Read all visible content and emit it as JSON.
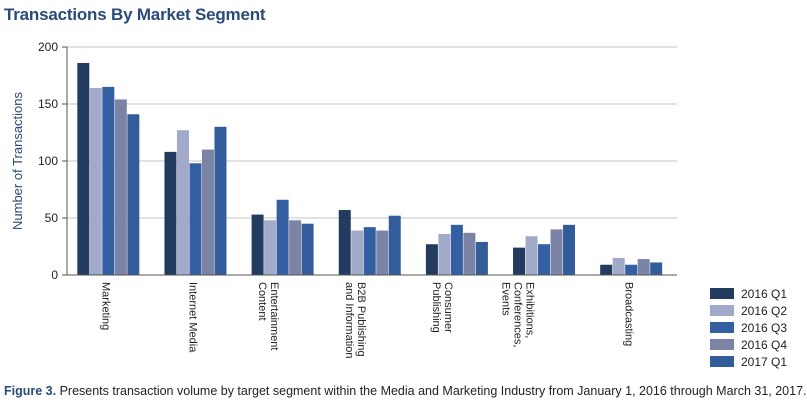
{
  "chart_data": {
    "type": "bar",
    "title": "Transactions By Market Segment",
    "xlabel": "",
    "ylabel": "Number of Transactions",
    "ylim": [
      0,
      200
    ],
    "yticks": [
      "0",
      "50",
      "100",
      "150",
      "200"
    ],
    "categories": [
      [
        "Marketing"
      ],
      [
        "Internet Media"
      ],
      [
        "Entertainment",
        "Content"
      ],
      [
        "B2B Publishing",
        "and Information"
      ],
      [
        "Consumer",
        "Publishing"
      ],
      [
        "Exhibitions,",
        "Conferences,",
        "Events"
      ],
      [
        "Broadcasting"
      ]
    ],
    "series": [
      {
        "name": "2016 Q1",
        "color": "#233b5e",
        "values": [
          186,
          108,
          53,
          57,
          27,
          24,
          9
        ]
      },
      {
        "name": "2016 Q2",
        "color": "#a1aac9",
        "values": [
          164,
          127,
          48,
          39,
          36,
          34,
          15
        ]
      },
      {
        "name": "2016 Q3",
        "color": "#355fa3",
        "values": [
          165,
          98,
          66,
          42,
          44,
          27,
          9
        ]
      },
      {
        "name": "2016 Q4",
        "color": "#7c84a6",
        "values": [
          154,
          110,
          48,
          39,
          37,
          40,
          14
        ]
      },
      {
        "name": "2017 Q1",
        "color": "#325d9a",
        "values": [
          141,
          130,
          45,
          52,
          29,
          44,
          11
        ]
      }
    ],
    "legend_position": "bottom-right"
  },
  "caption": {
    "label": "Figure 3.",
    "text": " Presents transaction volume by target segment within the Media and Marketing Industry from January 1, 2016 through March 31, 2017."
  }
}
